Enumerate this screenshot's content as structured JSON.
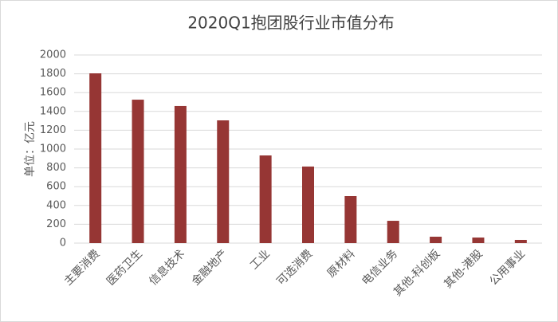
{
  "chart_data": {
    "type": "bar",
    "title": "2020Q1抱团股行业市值分布",
    "y_label": "单位：亿元",
    "categories": [
      "主要消费",
      "医药卫生",
      "信息技术",
      "金融地产",
      "工业",
      "可选消费",
      "原材料",
      "电信业务",
      "其他-科创板",
      "其他-港股",
      "公用事业"
    ],
    "values": [
      1805,
      1525,
      1458,
      1305,
      932,
      814,
      500,
      237,
      68,
      59,
      34
    ],
    "color": "#963634",
    "ylim": [
      0,
      2000
    ],
    "yticks": [
      0,
      200,
      400,
      600,
      800,
      1000,
      1200,
      1400,
      1600,
      1800,
      2000
    ],
    "grid": true
  }
}
